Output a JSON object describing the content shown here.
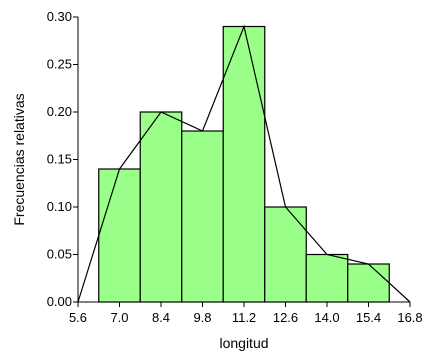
{
  "chart_data": {
    "type": "bar",
    "subtype": "histogram-with-frequency-polygon",
    "title": "",
    "xlabel": "longitud",
    "ylabel": "Frecuencias relativas",
    "xlim": [
      5.6,
      16.8
    ],
    "ylim": [
      0.0,
      0.3
    ],
    "x_ticks": [
      "5.6",
      "7.0",
      "8.4",
      "9.8",
      "11.2",
      "12.6",
      "14.0",
      "15.4",
      "16.8"
    ],
    "y_ticks": [
      "0.00",
      "0.05",
      "0.10",
      "0.15",
      "0.20",
      "0.25",
      "0.30"
    ],
    "bins": [
      {
        "start": 6.3,
        "end": 7.7,
        "value": 0.14
      },
      {
        "start": 7.7,
        "end": 9.1,
        "value": 0.2
      },
      {
        "start": 9.1,
        "end": 10.5,
        "value": 0.18
      },
      {
        "start": 10.5,
        "end": 11.9,
        "value": 0.29
      },
      {
        "start": 11.9,
        "end": 13.3,
        "value": 0.1
      },
      {
        "start": 13.3,
        "end": 14.7,
        "value": 0.05
      },
      {
        "start": 14.7,
        "end": 16.1,
        "value": 0.04
      }
    ],
    "polygon": {
      "x": [
        5.6,
        7.0,
        8.4,
        9.8,
        11.2,
        12.6,
        14.0,
        15.4,
        16.8
      ],
      "y": [
        0.0,
        0.14,
        0.2,
        0.18,
        0.29,
        0.1,
        0.05,
        0.04,
        0.0
      ]
    },
    "grid": false,
    "legend": "none",
    "colors": {
      "bar_fill": "#99ff88",
      "bar_stroke": "#000000",
      "line": "#000000"
    }
  }
}
